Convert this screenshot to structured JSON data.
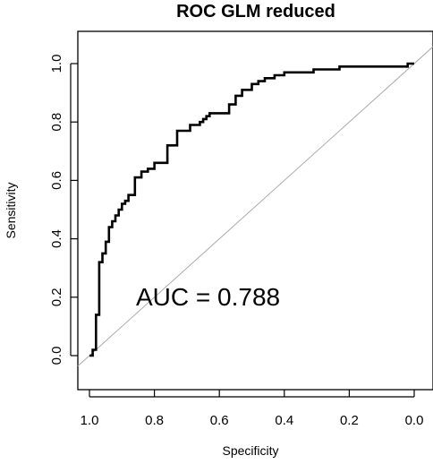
{
  "chart_data": {
    "type": "line",
    "title": "ROC GLM reduced",
    "xlabel": "Specificity",
    "ylabel": "Sensitivity",
    "xlim": [
      1.0,
      0.0
    ],
    "ylim": [
      0.0,
      1.0
    ],
    "x_reversed": true,
    "grid": false,
    "x_ticks": [
      1.0,
      0.8,
      0.6,
      0.4,
      0.2,
      0.0
    ],
    "x_tick_labels": [
      "1.0",
      "0.8",
      "0.6",
      "0.4",
      "0.2",
      "0.0"
    ],
    "y_ticks": [
      0.0,
      0.2,
      0.4,
      0.6,
      0.8,
      1.0
    ],
    "y_tick_labels": [
      "0.0",
      "0.2",
      "0.4",
      "0.6",
      "0.8",
      "1.0"
    ],
    "annotation": "AUC = 0.788",
    "series": [
      {
        "specificity": [
          1.0,
          0.99,
          0.99,
          0.98,
          0.98,
          0.97,
          0.97,
          0.96,
          0.96,
          0.95,
          0.95,
          0.94,
          0.94,
          0.93,
          0.93,
          0.92,
          0.92,
          0.91,
          0.91,
          0.9,
          0.9,
          0.89,
          0.89,
          0.88,
          0.88,
          0.87,
          0.87,
          0.86,
          0.86,
          0.84,
          0.84,
          0.82,
          0.82,
          0.8,
          0.8,
          0.76,
          0.76,
          0.73,
          0.73,
          0.72,
          0.72,
          0.69,
          0.69,
          0.66,
          0.66,
          0.65,
          0.65,
          0.64,
          0.64,
          0.63,
          0.63,
          0.57,
          0.57,
          0.55,
          0.55,
          0.53,
          0.53,
          0.5,
          0.5,
          0.48,
          0.48,
          0.46,
          0.46,
          0.43,
          0.43,
          0.4,
          0.4,
          0.31,
          0.31,
          0.27,
          0.27,
          0.23,
          0.23,
          0.2,
          0.2,
          0.02,
          0.02,
          0.0
        ],
        "sensitivity": [
          0.0,
          0.0,
          0.02,
          0.02,
          0.14,
          0.14,
          0.32,
          0.32,
          0.35,
          0.35,
          0.39,
          0.39,
          0.44,
          0.44,
          0.46,
          0.46,
          0.48,
          0.48,
          0.5,
          0.5,
          0.52,
          0.52,
          0.53,
          0.53,
          0.55,
          0.55,
          0.55,
          0.55,
          0.61,
          0.61,
          0.63,
          0.63,
          0.64,
          0.64,
          0.66,
          0.66,
          0.72,
          0.72,
          0.77,
          0.77,
          0.77,
          0.77,
          0.79,
          0.79,
          0.8,
          0.8,
          0.81,
          0.81,
          0.82,
          0.82,
          0.83,
          0.83,
          0.86,
          0.86,
          0.89,
          0.89,
          0.91,
          0.91,
          0.93,
          0.93,
          0.94,
          0.94,
          0.95,
          0.95,
          0.96,
          0.96,
          0.97,
          0.97,
          0.98,
          0.98,
          0.98,
          0.98,
          0.99,
          0.99,
          0.99,
          0.99,
          1.0,
          1.0
        ]
      }
    ],
    "reference_line": {
      "from": [
        1.0,
        0.0
      ],
      "to": [
        0.0,
        1.0
      ],
      "color": "#aaaaaa"
    },
    "colors": {
      "curve": "#000000",
      "frame": "#000000",
      "diagonal": "#aaaaaa"
    }
  }
}
